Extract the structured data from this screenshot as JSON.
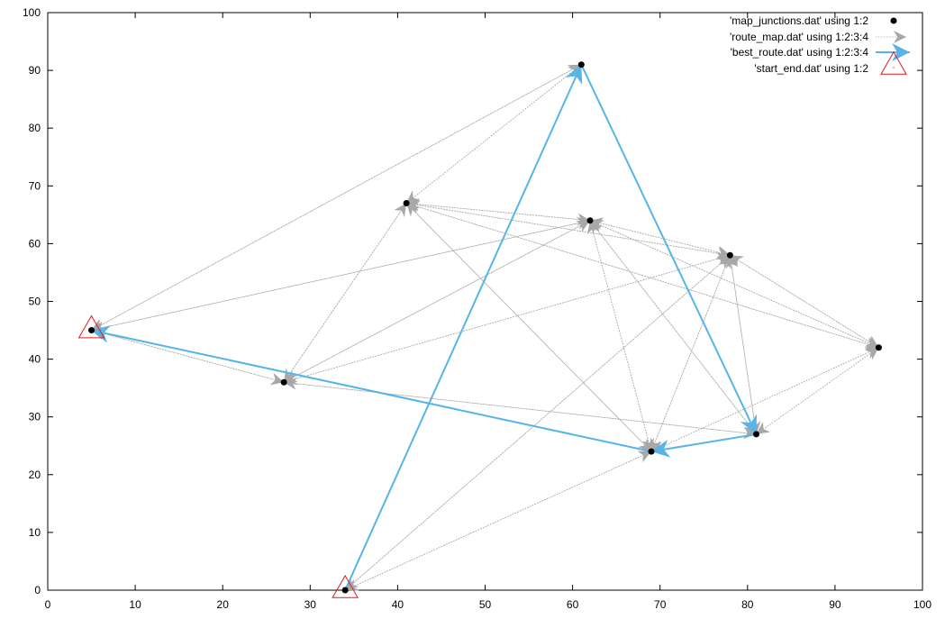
{
  "chart_data": {
    "type": "scatter",
    "xlim": [
      0,
      100
    ],
    "ylim": [
      0,
      100
    ],
    "x_ticks": [
      0,
      10,
      20,
      30,
      40,
      50,
      60,
      70,
      80,
      90,
      100
    ],
    "y_ticks": [
      0,
      10,
      20,
      30,
      40,
      50,
      60,
      70,
      80,
      90,
      100
    ],
    "grid": false,
    "legend_position": "top-right",
    "series": [
      {
        "name": "'map_junctions.dat' using 1:2",
        "style": "points",
        "color": "#000000",
        "points": [
          [
            5,
            45
          ],
          [
            34,
            0
          ],
          [
            27,
            36
          ],
          [
            41,
            67
          ],
          [
            61,
            91
          ],
          [
            62,
            64
          ],
          [
            69,
            24
          ],
          [
            78,
            58
          ],
          [
            81,
            27
          ],
          [
            95,
            42
          ]
        ]
      },
      {
        "name": "'route_map.dat' using 1:2:3:4",
        "style": "vectors",
        "color": "#a0a0a0",
        "vectors": [
          [
            5,
            45,
            61,
            91
          ],
          [
            61,
            91,
            5,
            45
          ],
          [
            5,
            45,
            27,
            36
          ],
          [
            27,
            36,
            5,
            45
          ],
          [
            5,
            45,
            62,
            64
          ],
          [
            62,
            64,
            5,
            45
          ],
          [
            27,
            36,
            41,
            67
          ],
          [
            41,
            67,
            27,
            36
          ],
          [
            27,
            36,
            62,
            64
          ],
          [
            62,
            64,
            27,
            36
          ],
          [
            27,
            36,
            78,
            58
          ],
          [
            78,
            58,
            27,
            36
          ],
          [
            27,
            36,
            81,
            27
          ],
          [
            81,
            27,
            27,
            36
          ],
          [
            34,
            0,
            69,
            24
          ],
          [
            69,
            24,
            34,
            0
          ],
          [
            34,
            0,
            78,
            58
          ],
          [
            78,
            58,
            34,
            0
          ],
          [
            41,
            67,
            61,
            91
          ],
          [
            61,
            91,
            41,
            67
          ],
          [
            41,
            67,
            62,
            64
          ],
          [
            62,
            64,
            41,
            67
          ],
          [
            41,
            67,
            78,
            58
          ],
          [
            78,
            58,
            41,
            67
          ],
          [
            41,
            67,
            95,
            42
          ],
          [
            95,
            42,
            41,
            67
          ],
          [
            41,
            67,
            69,
            24
          ],
          [
            69,
            24,
            41,
            67
          ],
          [
            62,
            64,
            78,
            58
          ],
          [
            78,
            58,
            62,
            64
          ],
          [
            62,
            64,
            69,
            24
          ],
          [
            69,
            24,
            62,
            64
          ],
          [
            62,
            64,
            81,
            27
          ],
          [
            81,
            27,
            62,
            64
          ],
          [
            62,
            64,
            95,
            42
          ],
          [
            95,
            42,
            62,
            64
          ],
          [
            78,
            58,
            95,
            42
          ],
          [
            95,
            42,
            78,
            58
          ],
          [
            78,
            58,
            81,
            27
          ],
          [
            81,
            27,
            78,
            58
          ],
          [
            78,
            58,
            69,
            24
          ],
          [
            69,
            24,
            78,
            58
          ],
          [
            69,
            24,
            95,
            42
          ],
          [
            95,
            42,
            69,
            24
          ],
          [
            81,
            27,
            95,
            42
          ],
          [
            95,
            42,
            81,
            27
          ]
        ]
      },
      {
        "name": "'best_route.dat' using 1:2:3:4",
        "style": "vectors",
        "color": "#56b4e9",
        "vectors": [
          [
            34,
            0,
            61,
            91
          ],
          [
            61,
            91,
            81,
            27
          ],
          [
            81,
            27,
            69,
            24
          ],
          [
            69,
            24,
            5,
            45
          ]
        ]
      },
      {
        "name": "'start_end.dat' using 1:2",
        "style": "points",
        "marker": "triangle",
        "color": "#e41a1c",
        "points": [
          [
            5,
            45
          ],
          [
            34,
            0
          ]
        ]
      }
    ]
  }
}
